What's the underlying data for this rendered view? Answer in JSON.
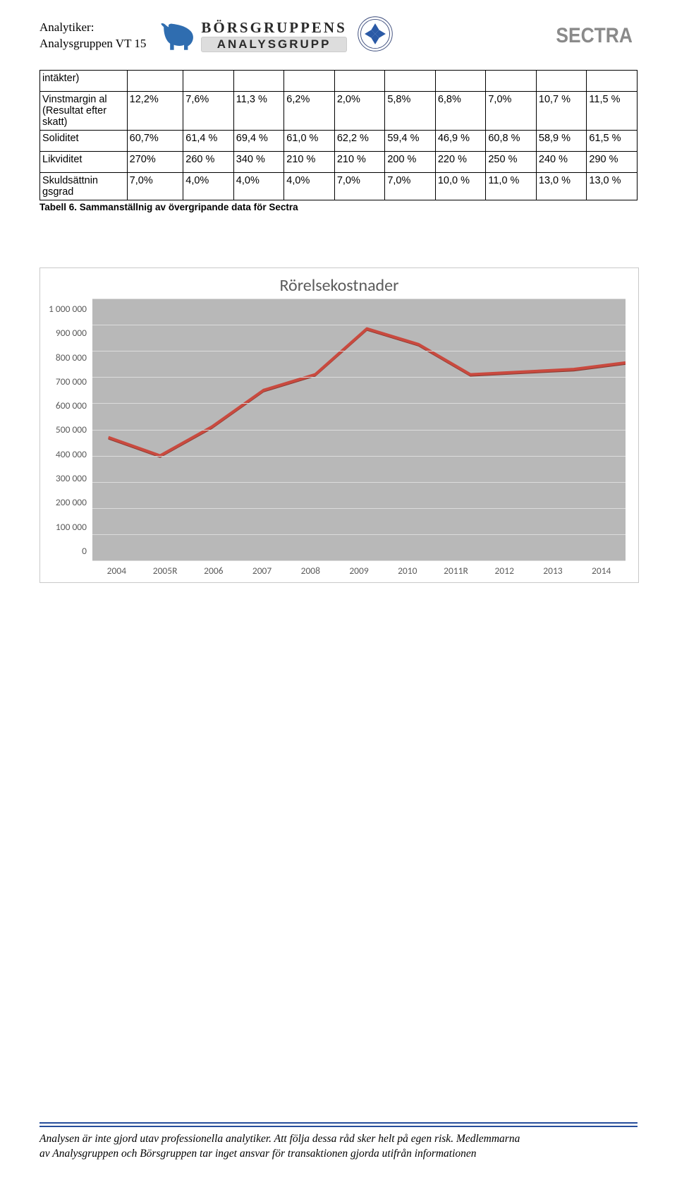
{
  "header": {
    "analytiker_label": "Analytiker:",
    "group": "Analysgruppen VT 15",
    "bg_top": "BÖRSGRUPPENS",
    "bg_bottom": "ANALYSGRUPP",
    "sectra": "SECTRA"
  },
  "table": {
    "col_count": 11,
    "rows": [
      {
        "label": "intäkter)",
        "cells": [
          "",
          "",
          "",
          "",
          "",
          "",
          "",
          "",
          "",
          ""
        ]
      },
      {
        "label": "Vinstmargin al (Resultat efter skatt)",
        "cells": [
          "12,2%",
          "7,6%",
          "11,3 %",
          "6,2%",
          "2,0%",
          "5,8%",
          "6,8%",
          "7,0%",
          "10,7 %",
          "11,5 %"
        ]
      },
      {
        "label": "Soliditet",
        "cells": [
          "60,7%",
          "61,4 %",
          "69,4 %",
          "61,0 %",
          "62,2 %",
          "59,4 %",
          "46,9 %",
          "60,8 %",
          "58,9 %",
          "61,5 %"
        ]
      },
      {
        "label": "Likviditet",
        "cells": [
          "270%",
          "260 %",
          "340 %",
          "210 %",
          "210 %",
          "200 %",
          "220 %",
          "250 %",
          "240 %",
          "290 %"
        ]
      },
      {
        "label": "Skuldsättnin gsgrad",
        "cells": [
          "7,0%",
          "4,0%",
          "4,0%",
          "4,0%",
          "7,0%",
          "7,0%",
          "10,0 %",
          "11,0 %",
          "13,0 %",
          "13,0 %"
        ]
      }
    ],
    "caption": "Tabell 6. Sammanställnig av övergripande data för Sectra"
  },
  "chart": {
    "title": "Rörelsekostnader",
    "type": "line",
    "ylim": [
      0,
      1000000
    ],
    "ytick_step": 100000,
    "ytick_labels": [
      "1 000 000",
      "900 000",
      "800 000",
      "700 000",
      "600 000",
      "500 000",
      "400 000",
      "300 000",
      "200 000",
      "100 000",
      "0"
    ],
    "xlabels": [
      "2004",
      "2005R",
      "2006",
      "2007",
      "2008",
      "2009",
      "2010",
      "2011R",
      "2012",
      "2013",
      "2014"
    ],
    "values": [
      470000,
      400000,
      510000,
      650000,
      710000,
      885000,
      825000,
      710000,
      720000,
      730000,
      755000
    ],
    "line_color": "#c94a3f",
    "line_width": 4,
    "plot_background": "#b8b8b8",
    "grid_color": "#dcdcdc",
    "chart_border_color": "#c9c9c9",
    "title_color": "#5b5b5b",
    "title_fontsize": 24,
    "axis_label_color": "#5b5b5b",
    "axis_label_fontsize": 13.5
  },
  "footer": {
    "line1": "Analysen är inte gjord utav professionella analytiker. Att följa dessa råd sker helt på egen risk. Medlemmarna",
    "line2": "av Analysgruppen och Börsgruppen tar inget ansvar för transaktionen gjorda utifrån informationen",
    "hr_color": "#274e9b"
  }
}
